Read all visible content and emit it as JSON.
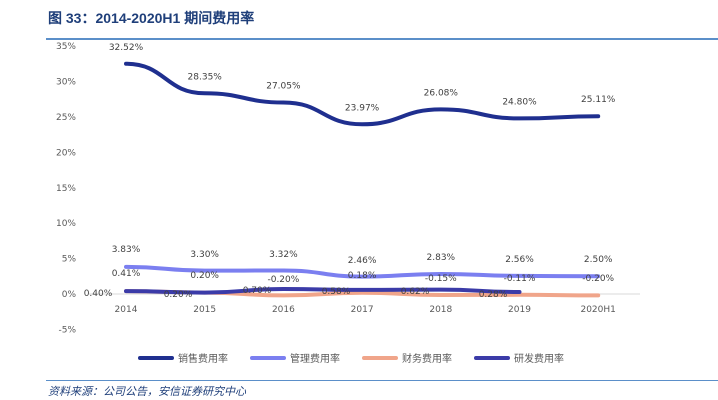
{
  "title": "图 33：2014-2020H1 期间费用率",
  "source": "资料来源：公司公告，安信证券研究中心",
  "chart_data": {
    "type": "line",
    "title": "",
    "xlabel": "",
    "ylabel": "",
    "categories": [
      "2014",
      "2015",
      "2016",
      "2017",
      "2018",
      "2019",
      "2020H1"
    ],
    "ylim": [
      -5,
      35
    ],
    "yticks": [
      "-5%",
      "0%",
      "5%",
      "10%",
      "15%",
      "20%",
      "25%",
      "30%",
      "35%"
    ],
    "grid": false,
    "legend": "bottom",
    "series": [
      {
        "name": "销售费用率",
        "color": "#1f2f8f",
        "values": [
          32.52,
          28.35,
          27.05,
          23.97,
          26.08,
          24.8,
          25.11
        ],
        "labels": [
          "32.52%",
          "28.35%",
          "27.05%",
          "23.97%",
          "26.08%",
          "24.80%",
          "25.11%"
        ]
      },
      {
        "name": "管理费用率",
        "color": "#7b7ff0",
        "values": [
          3.83,
          3.3,
          3.32,
          2.46,
          2.83,
          2.56,
          2.5
        ],
        "labels": [
          "3.83%",
          "3.30%",
          "3.32%",
          "2.46%",
          "2.83%",
          "2.56%",
          "2.50%"
        ]
      },
      {
        "name": "财务费用率",
        "color": "#f0a58a",
        "values": [
          0.41,
          0.2,
          -0.2,
          0.18,
          -0.15,
          -0.11,
          -0.2
        ],
        "labels": [
          "0.41%",
          "0.20%",
          "-0.20%",
          "0.18%",
          "-0.15%",
          "-0.11%",
          "-0.20%"
        ]
      },
      {
        "name": "研发费用率",
        "color": "#3b3ba8",
        "values": [
          0.4,
          0.2,
          0.7,
          0.58,
          0.62,
          0.28,
          null
        ],
        "labels": [
          "0.40%",
          "0.20%",
          "0.70%",
          "0.58%",
          "0.62%",
          "0.28%",
          null
        ]
      }
    ]
  }
}
